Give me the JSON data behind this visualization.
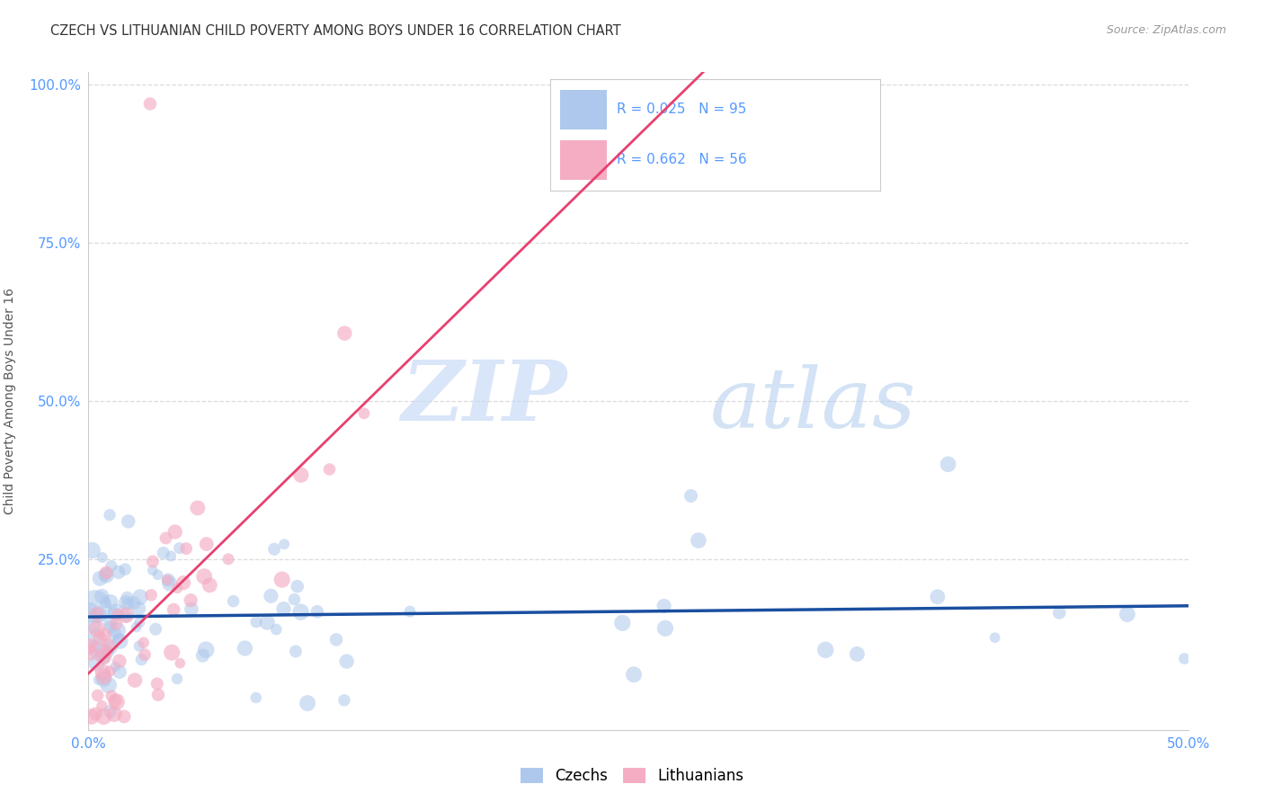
{
  "title": "CZECH VS LITHUANIAN CHILD POVERTY AMONG BOYS UNDER 16 CORRELATION CHART",
  "source": "Source: ZipAtlas.com",
  "ylabel": "Child Poverty Among Boys Under 16",
  "xlim": [
    0.0,
    0.5
  ],
  "ylim": [
    -0.02,
    1.02
  ],
  "czech_R": "0.025",
  "czech_N": "95",
  "lith_R": "0.662",
  "lith_N": "56",
  "czech_color": "#adc8ec",
  "lith_color": "#f4adc3",
  "czech_line_color": "#1a4fa0",
  "lith_line_color": "#e84070",
  "grid_color": "#d8d8d8",
  "watermark_zip_color": "#c5d8f5",
  "watermark_atlas_color": "#b0ccee",
  "title_fontsize": 10.5,
  "tick_color": "#5599ff",
  "ytick_labels": [
    "",
    "25.0%",
    "50.0%",
    "75.0%",
    "100.0%"
  ],
  "xtick_labels": [
    "0.0%",
    "",
    "",
    "",
    "",
    "50.0%"
  ]
}
